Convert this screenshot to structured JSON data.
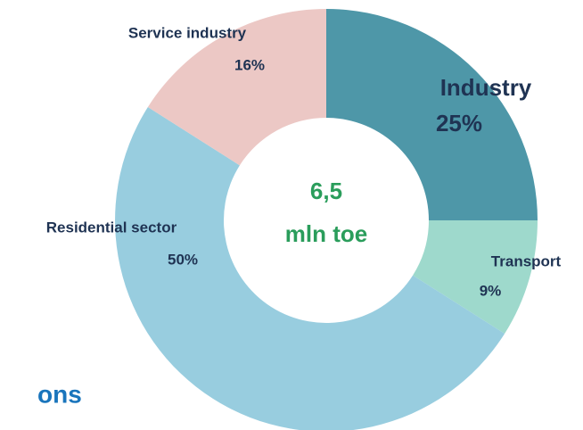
{
  "chart_data": {
    "type": "donut",
    "categories": [
      "Industry",
      "Transport",
      "Residential sector",
      "Service industry"
    ],
    "values": [
      25,
      9,
      50,
      16
    ],
    "value_labels": [
      "25%",
      "9%",
      "50%",
      "16%"
    ],
    "colors": [
      "#4e97a8",
      "#9ed9cc",
      "#98cddf",
      "#ecc8c5"
    ],
    "center_label": [
      "6,5",
      "mln toe"
    ],
    "annotation": "ons"
  }
}
